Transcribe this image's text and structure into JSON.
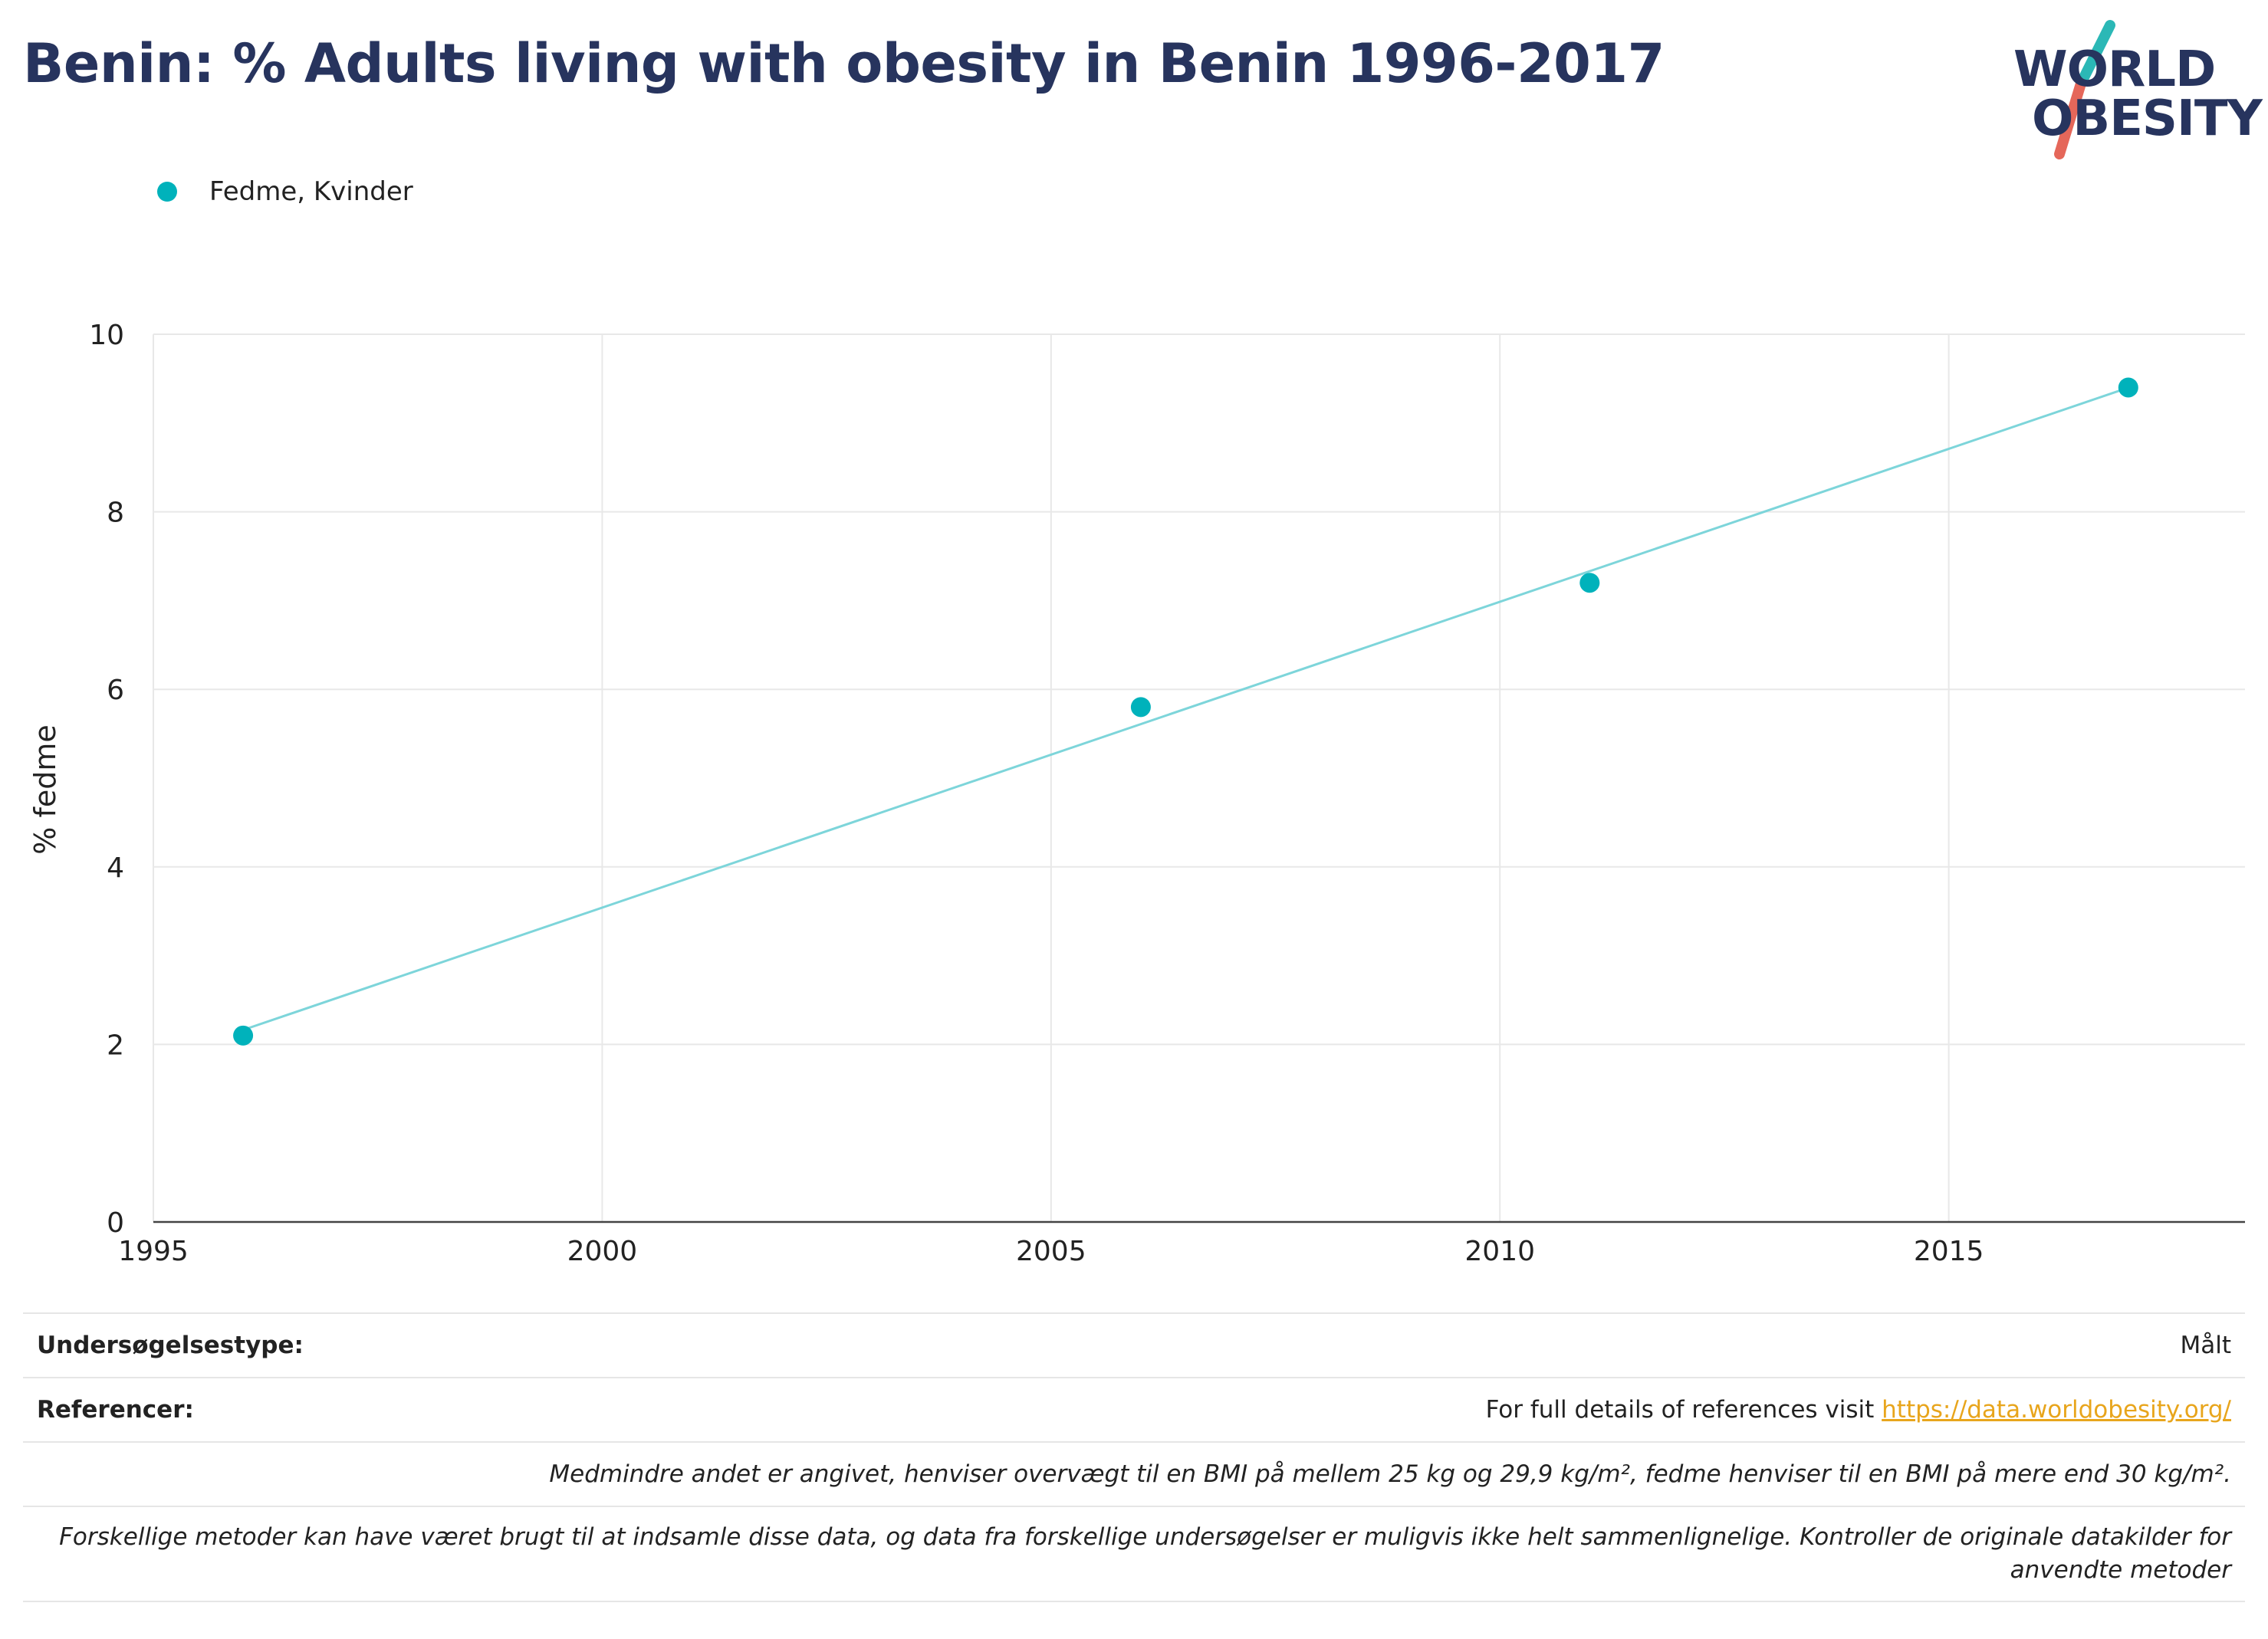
{
  "title": "Benin: % Adults living with obesity in Benin 1996-2017",
  "logo": {
    "line1": "WORLD",
    "line2": "OBESITY"
  },
  "colors": {
    "series": "#00b2bb",
    "trend": "#7dd5da",
    "title": "#27345e",
    "link": "#e8a51c"
  },
  "chart_data": {
    "type": "scatter",
    "title": "Benin: % Adults living with obesity in Benin 1996-2017",
    "xlabel": "",
    "ylabel": "% fedme",
    "xlim": [
      1995,
      2018.3
    ],
    "ylim": [
      0,
      10
    ],
    "x_ticks": [
      1995,
      2000,
      2005,
      2010,
      2015
    ],
    "y_ticks": [
      0,
      2,
      4,
      6,
      8,
      10
    ],
    "grid": true,
    "legend": "top-left",
    "series": [
      {
        "name": "Fedme, Kvinder",
        "x": [
          1996,
          2006,
          2011,
          2017
        ],
        "y": [
          2.1,
          5.8,
          7.2,
          9.4
        ],
        "trendline": true
      }
    ]
  },
  "footer": {
    "survey_type_label": "Undersøgelsestype:",
    "survey_type_value": "Målt",
    "references_label": "Referencer:",
    "references_text": "For full details of references visit ",
    "references_link": "https://data.worldobesity.org/",
    "note1": "Medmindre andet er angivet, henviser overvægt til en BMI på mellem 25 kg og 29,9 kg/m², fedme henviser til en BMI på mere end 30 kg/m².",
    "note2": "Forskellige metoder kan have været brugt til at indsamle disse data, og data fra forskellige undersøgelser er muligvis ikke helt sammenlignelige. Kontroller de originale datakilder for anvendte metoder"
  }
}
